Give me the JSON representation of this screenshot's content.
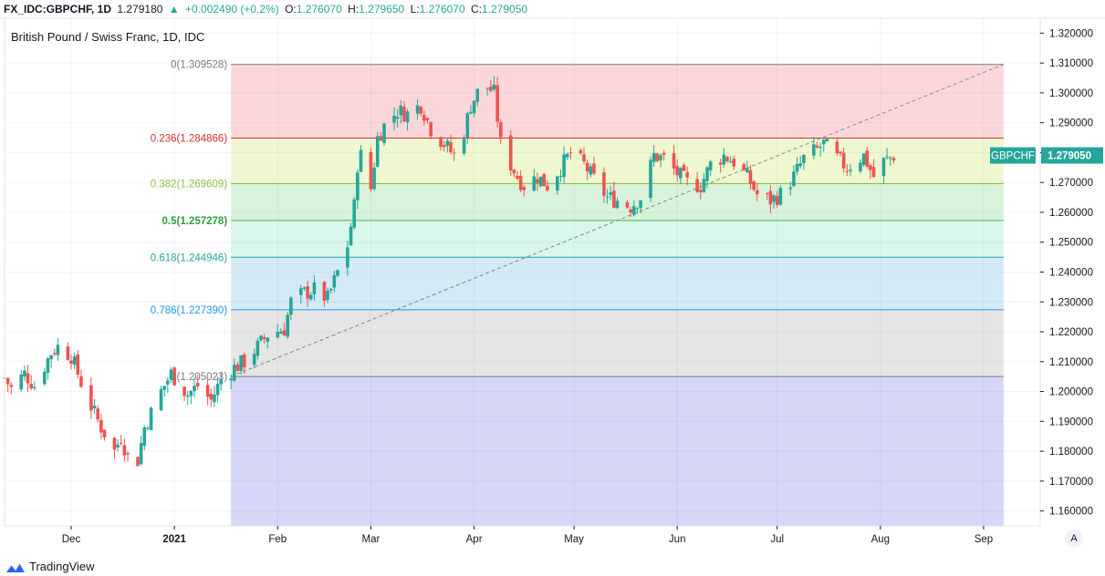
{
  "header": {
    "symbol": "FX_IDC:GBPCHF, 1D",
    "last": "1.279180",
    "change_arrow": "▲",
    "change": "+0.002490 (+0.2%)",
    "o_label": "O:",
    "o_value": "1.276070",
    "h_label": "H:",
    "h_value": "1.279650",
    "l_label": "L:",
    "l_value": "1.276070",
    "c_label": "C:",
    "c_value": "1.279050"
  },
  "title": "British Pound / Swiss Franc, 1D, IDC",
  "price_tag": {
    "symbol": "GBPCHF",
    "value": "1.279050"
  },
  "footer": {
    "brand": "TradingView",
    "auto_button": "A"
  },
  "colors": {
    "up": "#26a69a",
    "down": "#ef5350",
    "accent": "#26a69a"
  },
  "chart_data": {
    "type": "candlestick",
    "y_axis": {
      "min": 1.155,
      "max": 1.325,
      "ticks": [
        "1.320000",
        "1.310000",
        "1.300000",
        "1.290000",
        "1.280000",
        "1.270000",
        "1.260000",
        "1.250000",
        "1.240000",
        "1.230000",
        "1.220000",
        "1.210000",
        "1.200000",
        "1.190000",
        "1.180000",
        "1.170000",
        "1.160000"
      ]
    },
    "x_axis": {
      "labels": [
        {
          "label": "Dec",
          "date": "2020-12-01"
        },
        {
          "label": "2021",
          "date": "2021-01-01",
          "bold": true
        },
        {
          "label": "Feb",
          "date": "2021-02-01"
        },
        {
          "label": "Mar",
          "date": "2021-03-01"
        },
        {
          "label": "Apr",
          "date": "2021-04-01"
        },
        {
          "label": "May",
          "date": "2021-05-01"
        },
        {
          "label": "Jun",
          "date": "2021-06-01"
        },
        {
          "label": "Jul",
          "date": "2021-07-01"
        },
        {
          "label": "Aug",
          "date": "2021-08-01"
        },
        {
          "label": "Sep",
          "date": "2021-09-01"
        }
      ],
      "start": "2020-11-11",
      "end": "2021-09-18"
    },
    "fibonacci": {
      "start_date": "2021-01-18",
      "end_date": "2021-09-07",
      "trend_line": {
        "from": [
          "2021-01-18",
          1.205023
        ],
        "to": [
          "2021-09-07",
          1.309528
        ]
      },
      "levels": [
        {
          "ratio": "0",
          "label": "0(1.309528)",
          "price": 1.309528,
          "line": "#787b86",
          "fill": "rgba(242,54,69,0.2)",
          "text": "#787b86"
        },
        {
          "ratio": "0.236",
          "label": "0.236(1.284866)",
          "price": 1.284866,
          "line": "#d32f2f",
          "fill": "rgba(200,230,100,0.3)",
          "text": "#d32f2f"
        },
        {
          "ratio": "0.382",
          "label": "0.382(1.269609)",
          "price": 1.269609,
          "line": "#8bc34a",
          "fill": "rgba(76,200,80,0.22)",
          "text": "#8bc34a"
        },
        {
          "ratio": "0.5",
          "label": "0.5(1.257278)",
          "price": 1.257278,
          "line": "#4caf50",
          "fill": "rgba(80,220,160,0.22)",
          "text": "#2e9f3c"
        },
        {
          "ratio": "0.618",
          "label": "0.618(1.244946)",
          "price": 1.244946,
          "line": "#26a69a",
          "fill": "rgba(60,160,210,0.22)",
          "text": "#26a69a"
        },
        {
          "ratio": "0.786",
          "label": "0.786(1.227390)",
          "price": 1.22739,
          "line": "#2196f3",
          "fill": "rgba(150,150,150,0.25)",
          "text": "#2196f3"
        },
        {
          "ratio": "1",
          "label": "1(1.205023)",
          "price": 1.205023,
          "line": "#787b86",
          "fill": "rgba(90,90,220,0.25)",
          "text": "#787b86"
        }
      ],
      "extension_bottom": 1.155
    },
    "anchors": [
      [
        "2020-11-11",
        1.2045
      ],
      [
        "2020-11-13",
        1.201
      ],
      [
        "2020-11-17",
        1.206
      ],
      [
        "2020-11-20",
        1.202
      ],
      [
        "2020-11-25",
        1.213
      ],
      [
        "2020-11-27",
        1.215
      ],
      [
        "2020-12-01",
        1.212
      ],
      [
        "2020-12-04",
        1.203
      ],
      [
        "2020-12-07",
        1.195
      ],
      [
        "2020-12-10",
        1.188
      ],
      [
        "2020-12-14",
        1.18
      ],
      [
        "2020-12-16",
        1.185
      ],
      [
        "2020-12-18",
        1.178
      ],
      [
        "2020-12-21",
        1.177
      ],
      [
        "2020-12-23",
        1.188
      ],
      [
        "2020-12-28",
        1.2
      ],
      [
        "2020-12-31",
        1.206
      ],
      [
        "2021-01-05",
        1.199
      ],
      [
        "2021-01-08",
        1.202
      ],
      [
        "2021-01-12",
        1.197
      ],
      [
        "2021-01-15",
        1.204
      ],
      [
        "2021-01-19",
        1.208
      ],
      [
        "2021-01-22",
        1.21
      ],
      [
        "2021-01-26",
        1.215
      ],
      [
        "2021-01-29",
        1.219
      ],
      [
        "2021-02-03",
        1.221
      ],
      [
        "2021-02-05",
        1.23
      ],
      [
        "2021-02-09",
        1.233
      ],
      [
        "2021-02-12",
        1.234
      ],
      [
        "2021-02-16",
        1.231
      ],
      [
        "2021-02-18",
        1.237
      ],
      [
        "2021-02-22",
        1.249
      ],
      [
        "2021-02-24",
        1.262
      ],
      [
        "2021-02-25",
        1.276
      ],
      [
        "2021-02-26",
        1.279
      ],
      [
        "2021-03-01",
        1.268
      ],
      [
        "2021-03-03",
        1.285
      ],
      [
        "2021-03-05",
        1.289
      ],
      [
        "2021-03-09",
        1.294
      ],
      [
        "2021-03-12",
        1.293
      ],
      [
        "2021-03-16",
        1.296
      ],
      [
        "2021-03-19",
        1.288
      ],
      [
        "2021-03-23",
        1.283
      ],
      [
        "2021-03-26",
        1.279
      ],
      [
        "2021-03-29",
        1.287
      ],
      [
        "2021-03-31",
        1.296
      ],
      [
        "2021-04-02",
        1.3
      ],
      [
        "2021-04-05",
        1.302
      ],
      [
        "2021-04-07",
        1.3
      ],
      [
        "2021-04-09",
        1.283
      ],
      [
        "2021-04-12",
        1.276
      ],
      [
        "2021-04-14",
        1.272
      ],
      [
        "2021-04-16",
        1.269
      ],
      [
        "2021-04-20",
        1.272
      ],
      [
        "2021-04-23",
        1.269
      ],
      [
        "2021-04-27",
        1.275
      ],
      [
        "2021-04-30",
        1.28
      ],
      [
        "2021-05-04",
        1.276
      ],
      [
        "2021-05-07",
        1.271
      ],
      [
        "2021-05-11",
        1.265
      ],
      [
        "2021-05-14",
        1.264
      ],
      [
        "2021-05-18",
        1.262
      ],
      [
        "2021-05-21",
        1.265
      ],
      [
        "2021-05-25",
        1.279
      ],
      [
        "2021-05-28",
        1.278
      ],
      [
        "2021-06-01",
        1.273
      ],
      [
        "2021-06-04",
        1.27
      ],
      [
        "2021-06-08",
        1.269
      ],
      [
        "2021-06-11",
        1.276
      ],
      [
        "2021-06-15",
        1.279
      ],
      [
        "2021-06-18",
        1.277
      ],
      [
        "2021-06-22",
        1.272
      ],
      [
        "2021-06-25",
        1.266
      ],
      [
        "2021-06-29",
        1.264
      ],
      [
        "2021-07-02",
        1.266
      ],
      [
        "2021-07-06",
        1.272
      ],
      [
        "2021-07-09",
        1.278
      ],
      [
        "2021-07-13",
        1.281
      ],
      [
        "2021-07-15",
        1.283
      ],
      [
        "2021-07-19",
        1.278
      ],
      [
        "2021-07-22",
        1.275
      ],
      [
        "2021-07-27",
        1.279
      ],
      [
        "2021-07-30",
        1.272
      ],
      [
        "2021-08-02",
        1.277
      ],
      [
        "2021-08-05",
        1.279
      ]
    ]
  }
}
